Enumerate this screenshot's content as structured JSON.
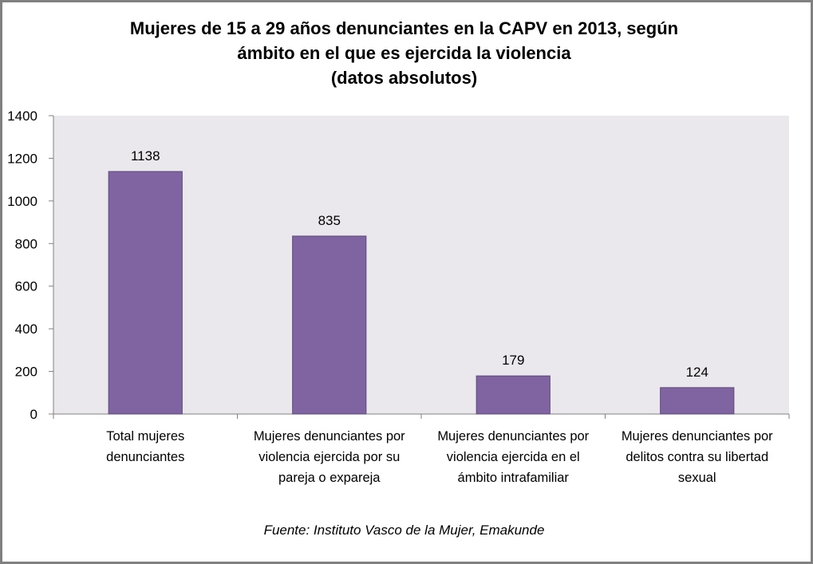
{
  "chart_data": {
    "type": "bar",
    "title_lines": [
      "Mujeres de 15 a 29 años denunciantes en la CAPV en 2013, según",
      "ámbito en el que es ejercida la violencia",
      "(datos absolutos)"
    ],
    "categories": [
      [
        "Total mujeres",
        "denunciantes"
      ],
      [
        "Mujeres denunciantes por",
        "violencia ejercida por su",
        "pareja o expareja"
      ],
      [
        "Mujeres denunciantes por",
        "violencia ejercida en el",
        "ámbito intrafamiliar"
      ],
      [
        "Mujeres denunciantes por",
        "delitos contra su libertad",
        "sexual"
      ]
    ],
    "values": [
      1138,
      835,
      179,
      124
    ],
    "data_labels": [
      "1138",
      "835",
      "179",
      "124"
    ],
    "ylim": [
      0,
      1400
    ],
    "yticks": [
      0,
      200,
      400,
      600,
      800,
      1000,
      1200,
      1400
    ],
    "ytick_labels": [
      "0",
      "200",
      "400",
      "600",
      "800",
      "1000",
      "1200",
      "1400"
    ],
    "xlabel": "",
    "ylabel": "",
    "grid": false,
    "legend": "none",
    "colors": {
      "bar": "#8064A2",
      "bar_border": "#5E4A7A",
      "plot_bg": "#EAE8ED",
      "axis": "#808080"
    }
  },
  "source": "Fuente: Instituto Vasco de la Mujer, Emakunde"
}
